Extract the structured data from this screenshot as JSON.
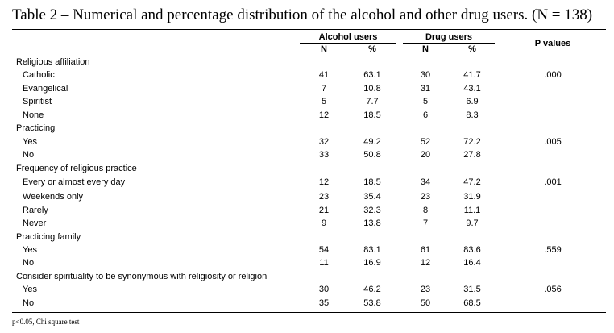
{
  "title": "Table 2 – Numerical and percentage distribution of the alcohol and other drug users. (N = 138)",
  "header": {
    "alcohol": "Alcohol users",
    "drug": "Drug users",
    "pvalues": "P values",
    "n": "N",
    "pct": "%"
  },
  "rows": [
    {
      "label": "Religious affiliation",
      "type": "group"
    },
    {
      "label": "Catholic",
      "type": "item",
      "a_n": "41",
      "a_pct": "63.1",
      "d_n": "30",
      "d_pct": "41.7",
      "p": ".000"
    },
    {
      "label": "Evangelical",
      "type": "item",
      "a_n": "7",
      "a_pct": "10.8",
      "d_n": "31",
      "d_pct": "43.1",
      "p": ""
    },
    {
      "label": "Spiritist",
      "type": "item",
      "a_n": "5",
      "a_pct": "7.7",
      "d_n": "5",
      "d_pct": "6.9",
      "p": ""
    },
    {
      "label": "None",
      "type": "item",
      "a_n": "12",
      "a_pct": "18.5",
      "d_n": "6",
      "d_pct": "8.3",
      "p": ""
    },
    {
      "label": "Practicing",
      "type": "group"
    },
    {
      "label": "Yes",
      "type": "item",
      "a_n": "32",
      "a_pct": "49.2",
      "d_n": "52",
      "d_pct": "72.2",
      "p": ".005"
    },
    {
      "label": "No",
      "type": "item",
      "a_n": "33",
      "a_pct": "50.8",
      "d_n": "20",
      "d_pct": "27.8",
      "p": ""
    },
    {
      "label": "Frequency of religious practice",
      "type": "group"
    },
    {
      "label": "Every or almost every day",
      "type": "item",
      "a_n": "12",
      "a_pct": "18.5",
      "d_n": "34",
      "d_pct": "47.2",
      "p": ".001"
    },
    {
      "label": "Weekends only",
      "type": "item",
      "a_n": "23",
      "a_pct": "35.4",
      "d_n": "23",
      "d_pct": "31.9",
      "p": ""
    },
    {
      "label": "Rarely",
      "type": "item",
      "a_n": "21",
      "a_pct": "32.3",
      "d_n": "8",
      "d_pct": "11.1",
      "p": ""
    },
    {
      "label": "Never",
      "type": "item",
      "a_n": "9",
      "a_pct": "13.8",
      "d_n": "7",
      "d_pct": "9.7",
      "p": ""
    },
    {
      "label": "Practicing family",
      "type": "group"
    },
    {
      "label": "Yes",
      "type": "item",
      "a_n": "54",
      "a_pct": "83.1",
      "d_n": "61",
      "d_pct": "83.6",
      "p": ".559"
    },
    {
      "label": "No",
      "type": "item",
      "a_n": "11",
      "a_pct": "16.9",
      "d_n": "12",
      "d_pct": "16.4",
      "p": ""
    },
    {
      "label": "Consider spirituality to be synonymous with religiosity or religion",
      "type": "group"
    },
    {
      "label": "Yes",
      "type": "item",
      "a_n": "30",
      "a_pct": "46.2",
      "d_n": "23",
      "d_pct": "31.5",
      "p": ".056"
    },
    {
      "label": "No",
      "type": "item",
      "a_n": "35",
      "a_pct": "53.8",
      "d_n": "50",
      "d_pct": "68.5",
      "p": ""
    }
  ],
  "footnote": "p<0.05, Chi square test"
}
